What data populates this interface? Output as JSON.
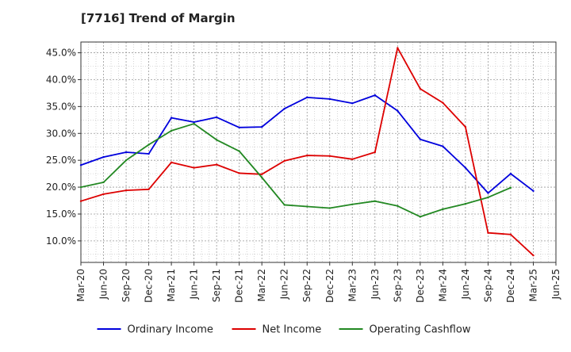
{
  "chart_data": {
    "type": "line",
    "title": "[7716]  Trend of Margin",
    "xlabel": "",
    "ylabel": "",
    "categories": [
      "Mar-20",
      "Jun-20",
      "Sep-20",
      "Dec-20",
      "Mar-21",
      "Jun-21",
      "Sep-21",
      "Dec-21",
      "Mar-22",
      "Jun-22",
      "Sep-22",
      "Dec-22",
      "Mar-23",
      "Jun-23",
      "Sep-23",
      "Dec-23",
      "Mar-24",
      "Jun-24",
      "Sep-24",
      "Dec-24",
      "Mar-25",
      "Jun-25"
    ],
    "ylim": [
      6.0,
      47.0
    ],
    "yticks": [
      10,
      15,
      20,
      25,
      30,
      35,
      40,
      45
    ],
    "ytick_labels": [
      "10.0%",
      "15.0%",
      "20.0%",
      "25.0%",
      "30.0%",
      "35.0%",
      "40.0%",
      "45.0%"
    ],
    "grid": true,
    "legend_position": "bottom",
    "series": [
      {
        "name": "Ordinary Income",
        "color": "#0000dd",
        "values": [
          24.1,
          25.6,
          26.5,
          26.2,
          32.9,
          32.1,
          33.0,
          31.1,
          31.2,
          34.6,
          36.7,
          36.4,
          35.6,
          37.1,
          34.2,
          28.9,
          27.6,
          23.6,
          18.9,
          22.5,
          19.3,
          null
        ]
      },
      {
        "name": "Net Income",
        "color": "#dd0000",
        "values": [
          17.4,
          18.7,
          19.4,
          19.6,
          24.6,
          23.6,
          24.2,
          22.6,
          22.4,
          24.9,
          25.9,
          25.8,
          25.2,
          26.5,
          45.9,
          38.3,
          35.7,
          31.2,
          11.5,
          11.2,
          7.3,
          null
        ]
      },
      {
        "name": "Operating Cashflow",
        "color": "#228822",
        "values": [
          20.0,
          20.9,
          25.0,
          27.9,
          30.5,
          31.8,
          28.8,
          26.7,
          21.8,
          16.7,
          16.4,
          16.1,
          16.8,
          17.4,
          16.5,
          14.5,
          15.9,
          16.9,
          18.1,
          19.9,
          null,
          null
        ]
      }
    ]
  }
}
